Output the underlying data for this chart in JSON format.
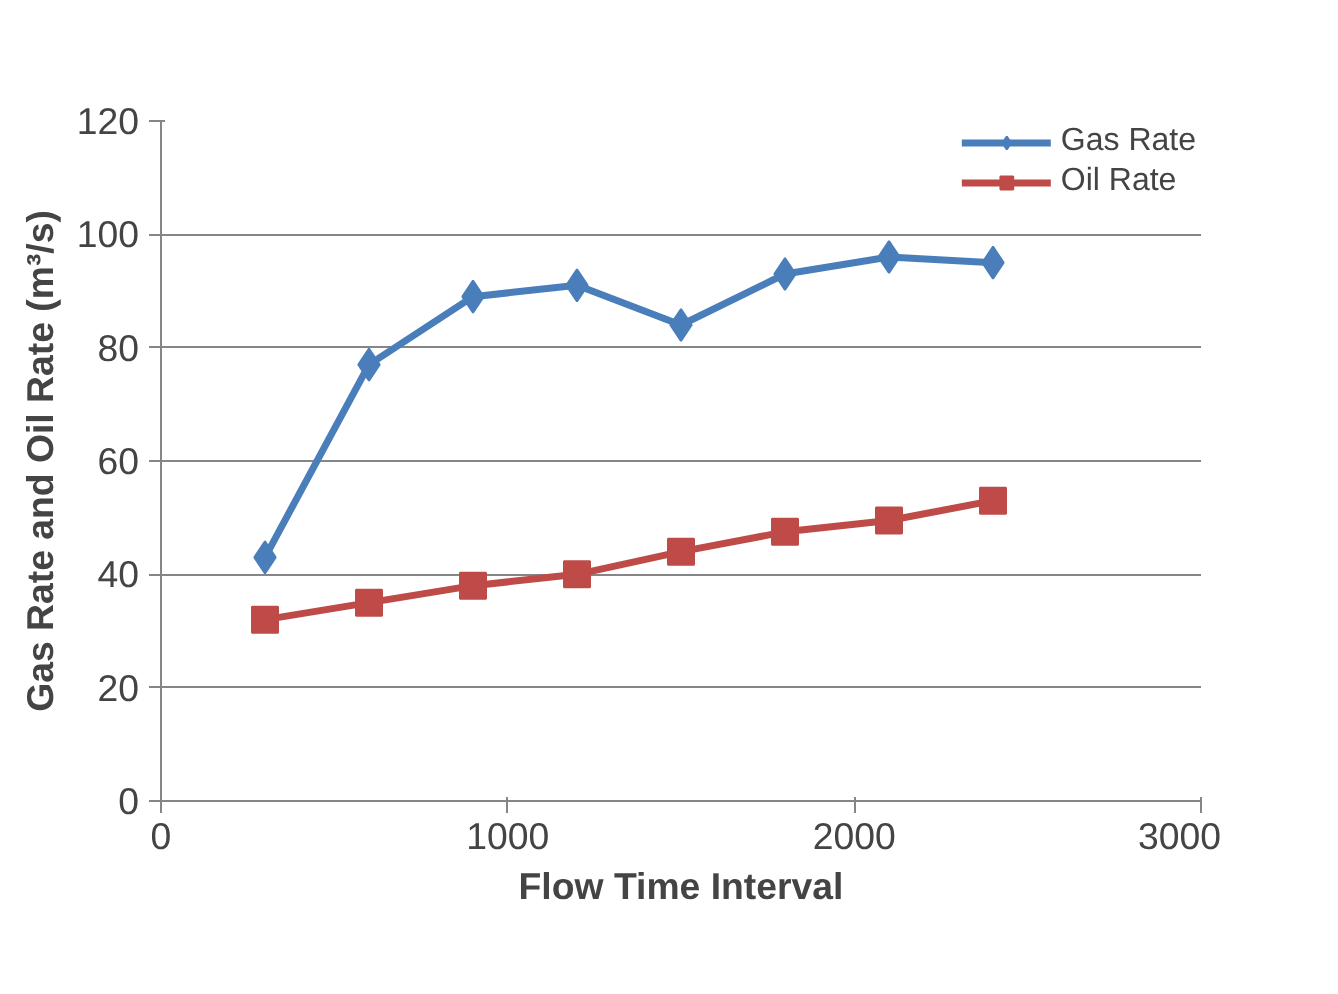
{
  "chart_data": {
    "type": "line",
    "xlabel": "Flow Time Interval",
    "ylabel": "Gas Rate and Oil Rate (m³/s)",
    "x": [
      300,
      600,
      900,
      1200,
      1500,
      1800,
      2100,
      2400
    ],
    "series": [
      {
        "name": "Gas Rate",
        "color": "#4a7ebb",
        "marker": "diamond",
        "values": [
          43,
          77,
          89,
          91,
          84,
          93,
          96,
          95
        ]
      },
      {
        "name": "Oil Rate",
        "color": "#be4b48",
        "marker": "square",
        "values": [
          32,
          35,
          38,
          40,
          44,
          47.5,
          49.5,
          53
        ]
      }
    ],
    "xlim": [
      0,
      3000
    ],
    "xticks": [
      0,
      1000,
      2000,
      3000
    ],
    "ylim": [
      0,
      120
    ],
    "yticks": [
      0,
      20,
      40,
      60,
      80,
      100,
      120
    ],
    "grid": "y",
    "legend": "top right",
    "line_style": "solid"
  }
}
